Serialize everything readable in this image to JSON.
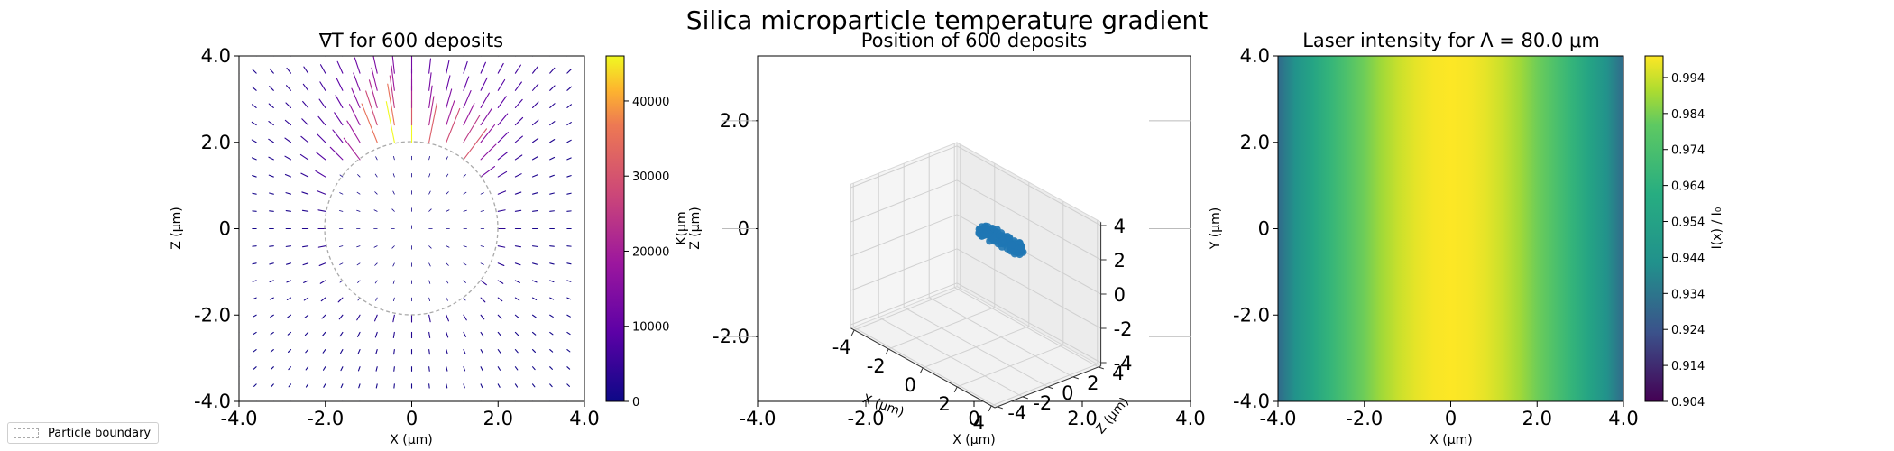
{
  "suptitle": "Silica microparticle temperature gradient",
  "chart_data": [
    {
      "type": "quiver",
      "title": "∇T for 600 deposits",
      "xlabel": "X (μm)",
      "ylabel": "Z (μm)",
      "xlim": [
        -4.0,
        4.0
      ],
      "ylim": [
        -4.0,
        4.0
      ],
      "xticks": [
        "-4.0",
        "-2.0",
        "0",
        "2.0",
        "4.0"
      ],
      "yticks": [
        "-4.0",
        "-2.0",
        "0",
        "2.0",
        "4.0"
      ],
      "particle_radius": 2.0,
      "colorbar": {
        "colormap": "plasma",
        "range": [
          0,
          46000
        ],
        "ticks": [
          "0",
          "10000",
          "20000",
          "30000",
          "40000"
        ]
      },
      "grid": false
    },
    {
      "type": "scatter3d",
      "title": "Position of 600 deposits",
      "xlabel": "X (μm)",
      "ylabel": "Z (μm)",
      "ylabel_overlap": "K(μm",
      "xlim_outer": [
        -4.0,
        4.0
      ],
      "outer_xticks": [
        "-4.0",
        "-2.0",
        "0",
        "2.0",
        "4.0"
      ],
      "outer_yticks": [
        "2.0",
        "0",
        "-2.0"
      ],
      "axis3d": {
        "x_label": "X (μm)",
        "z_label": "Z (μm)",
        "x_ticks": [
          "-4",
          "-2",
          "0",
          "2",
          "4"
        ],
        "y_ticks": [
          "-4",
          "-2",
          "0",
          "2",
          "4"
        ],
        "z_ticks": [
          "-4",
          "-2",
          "0",
          "2",
          "4"
        ]
      },
      "series": [
        {
          "color": "#1f77b4",
          "points_count": 600,
          "cluster_center": [
            0,
            2,
            1.5
          ]
        }
      ]
    },
    {
      "type": "heatmap",
      "title": "Laser intensity for Λ = 80.0 μm",
      "xlabel": "X (μm)",
      "ylabel": "Y (μm)",
      "xlim": [
        -4.0,
        4.0
      ],
      "ylim": [
        -4.0,
        4.0
      ],
      "xticks": [
        "-4.0",
        "-2.0",
        "0",
        "2.0",
        "4.0"
      ],
      "yticks": [
        "-4.0",
        "-2.0",
        "0",
        "2.0",
        "4.0"
      ],
      "colorbar": {
        "label": "I(x) / I₀",
        "colormap": "viridis",
        "range": [
          0.904,
          1.0
        ],
        "ticks": [
          "0.904",
          "0.914",
          "0.924",
          "0.934",
          "0.944",
          "0.954",
          "0.964",
          "0.974",
          "0.984",
          "0.994"
        ]
      },
      "profile": "1 - 0.096*(x/4)^2"
    }
  ],
  "legend": {
    "label": "Particle boundary"
  }
}
